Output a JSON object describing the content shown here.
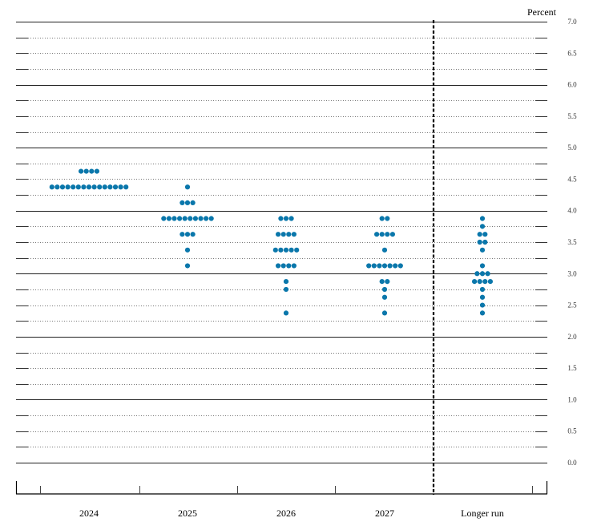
{
  "chart_data": {
    "type": "scatter",
    "subtype": "dot-plot",
    "title": "",
    "ylabel": "Percent",
    "xlabel": "",
    "ylim": [
      0,
      7
    ],
    "yticks": [
      "0.0",
      "0.5",
      "1.0",
      "1.5",
      "2.0",
      "2.5",
      "3.0",
      "3.5",
      "4.0",
      "4.5",
      "5.0",
      "5.5",
      "6.0",
      "6.5",
      "7.0"
    ],
    "grid": {
      "solid_every": 1.0,
      "dotted_every": 0.25
    },
    "categories": [
      "2024",
      "2025",
      "2026",
      "2027",
      "Longer run"
    ],
    "separator_after": "2027",
    "dot_color": "#0a77ab",
    "series": [
      {
        "name": "2024",
        "points": [
          {
            "value": 4.625,
            "count": 4
          },
          {
            "value": 4.375,
            "count": 15
          }
        ]
      },
      {
        "name": "2025",
        "points": [
          {
            "value": 4.375,
            "count": 1
          },
          {
            "value": 4.125,
            "count": 3
          },
          {
            "value": 3.875,
            "count": 10
          },
          {
            "value": 3.625,
            "count": 3
          },
          {
            "value": 3.375,
            "count": 1
          },
          {
            "value": 3.125,
            "count": 1
          }
        ]
      },
      {
        "name": "2026",
        "points": [
          {
            "value": 3.875,
            "count": 3
          },
          {
            "value": 3.625,
            "count": 4
          },
          {
            "value": 3.375,
            "count": 5
          },
          {
            "value": 3.125,
            "count": 4
          },
          {
            "value": 2.875,
            "count": 1
          },
          {
            "value": 2.75,
            "count": 1
          },
          {
            "value": 2.375,
            "count": 1
          }
        ]
      },
      {
        "name": "2027",
        "points": [
          {
            "value": 3.875,
            "count": 2
          },
          {
            "value": 3.625,
            "count": 4
          },
          {
            "value": 3.375,
            "count": 1
          },
          {
            "value": 3.125,
            "count": 7
          },
          {
            "value": 2.875,
            "count": 2
          },
          {
            "value": 2.75,
            "count": 1
          },
          {
            "value": 2.625,
            "count": 1
          },
          {
            "value": 2.375,
            "count": 1
          }
        ]
      },
      {
        "name": "Longer run",
        "points": [
          {
            "value": 3.875,
            "count": 1
          },
          {
            "value": 3.75,
            "count": 1
          },
          {
            "value": 3.625,
            "count": 2
          },
          {
            "value": 3.5,
            "count": 2
          },
          {
            "value": 3.375,
            "count": 1
          },
          {
            "value": 3.125,
            "count": 1
          },
          {
            "value": 3.0,
            "count": 3
          },
          {
            "value": 2.875,
            "count": 4
          },
          {
            "value": 2.75,
            "count": 1
          },
          {
            "value": 2.625,
            "count": 1
          },
          {
            "value": 2.5,
            "count": 1
          },
          {
            "value": 2.375,
            "count": 1
          }
        ]
      }
    ],
    "legend": []
  }
}
